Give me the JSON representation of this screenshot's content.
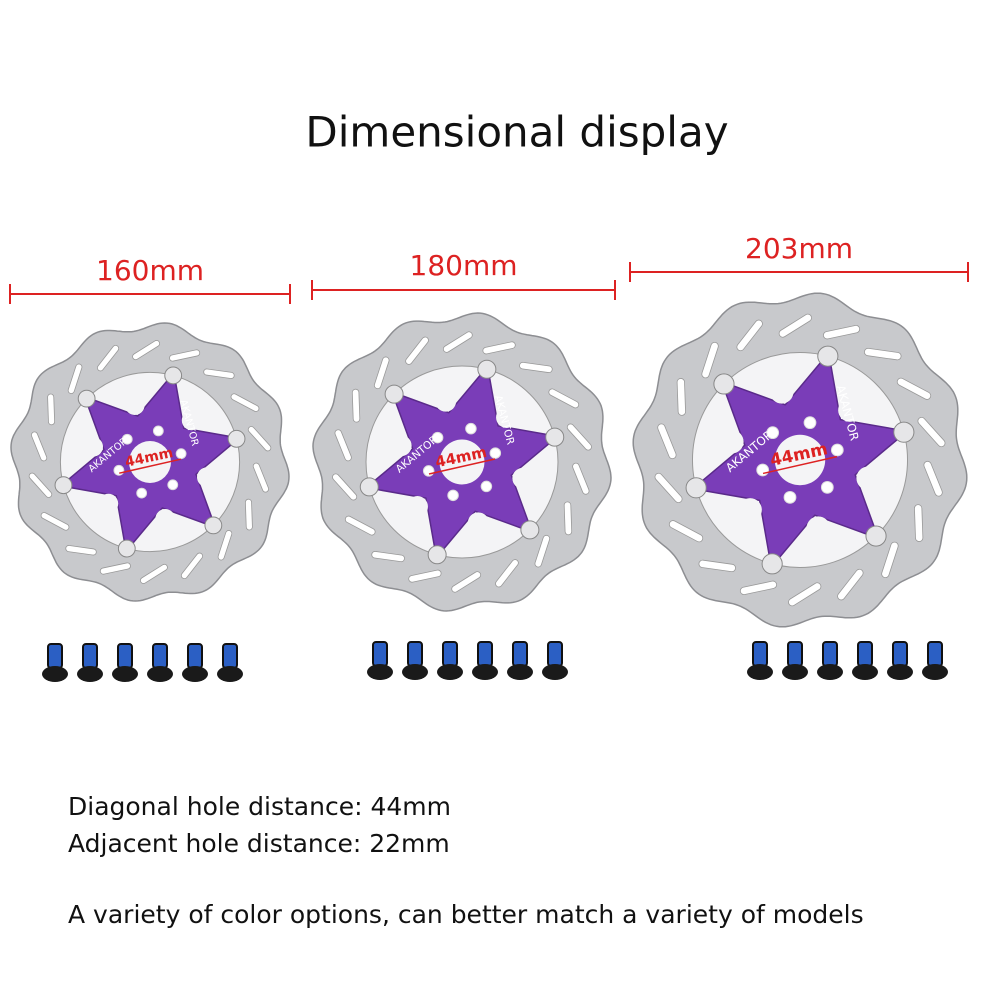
{
  "title": "Dimensional display",
  "brand": "AKANTOR",
  "rotors": [
    {
      "size": "160mm",
      "center": "44mm"
    },
    {
      "size": "180mm",
      "center": "44mm"
    },
    {
      "size": "203mm",
      "center": "44mm"
    }
  ],
  "specs": [
    "Diagonal hole distance: 44mm",
    "Adjacent hole distance: 22mm"
  ],
  "note": "A variety of color options, can better match a variety of models"
}
